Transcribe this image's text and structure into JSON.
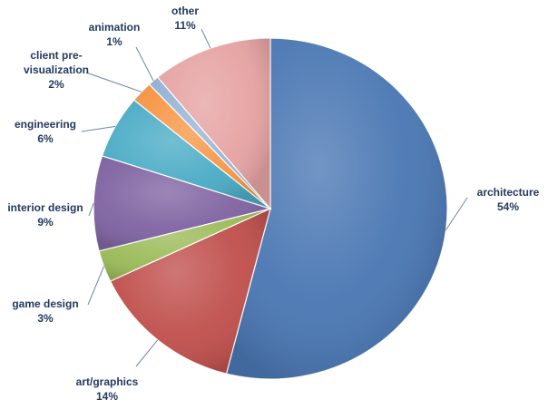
{
  "chart_data": {
    "type": "pie",
    "title": "",
    "slices": [
      {
        "label": "architecture",
        "value": 54,
        "value_label": "54%",
        "color": "#4a77b3"
      },
      {
        "label": "art/graphics",
        "value": 14,
        "value_label": "14%",
        "color": "#c0504d"
      },
      {
        "label": "game design",
        "value": 3,
        "value_label": "3%",
        "color": "#9bbb59"
      },
      {
        "label": "interior design",
        "value": 9,
        "value_label": "9%",
        "color": "#8064a2"
      },
      {
        "label": "engineering",
        "value": 6,
        "value_label": "6%",
        "color": "#4bacc6"
      },
      {
        "label": "client pre-visualization",
        "label_lines": [
          "client pre-",
          "visualization"
        ],
        "value": 2,
        "value_label": "2%",
        "color": "#f79646"
      },
      {
        "label": "animation",
        "value": 1,
        "value_label": "1%",
        "color": "#95b3d7"
      },
      {
        "label": "other",
        "value": 11,
        "value_label": "11%",
        "color": "#e6a3a3"
      }
    ],
    "start_angle_deg": 0,
    "direction": "clockwise",
    "legend": "none",
    "data_labels": "outside with leader lines"
  }
}
